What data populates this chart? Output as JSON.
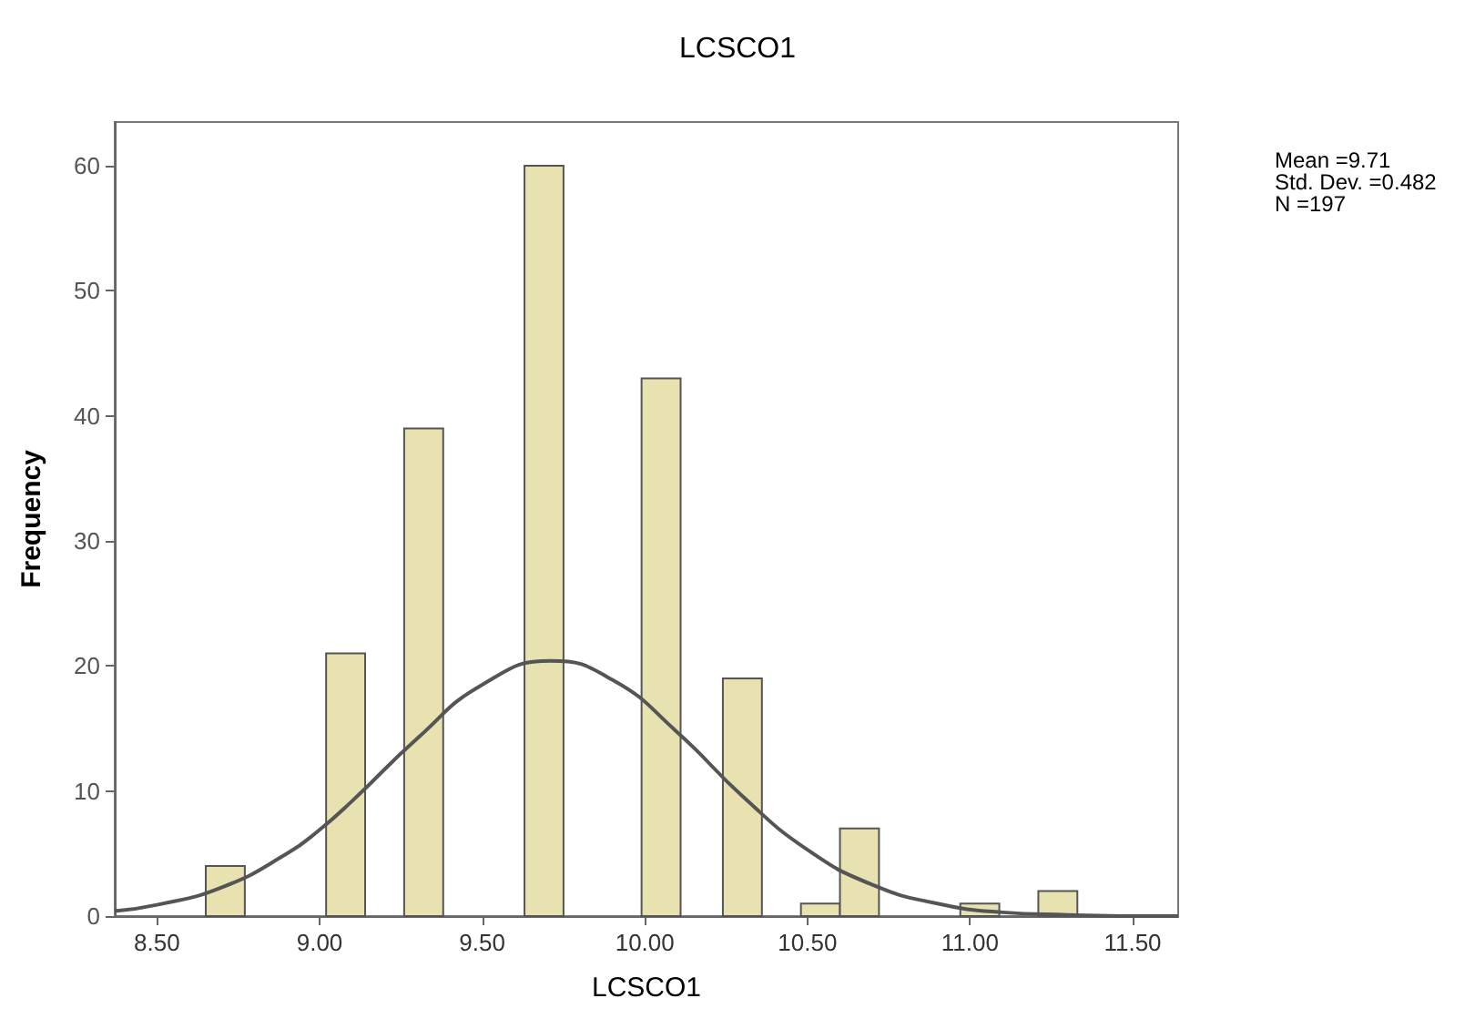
{
  "chart_data": {
    "type": "histogram",
    "title": "LCSCO1",
    "xlabel": "LCSCO1",
    "ylabel": "Frequency",
    "bins": [
      8.65,
      8.77,
      9.02,
      9.14,
      9.26,
      9.38,
      9.63,
      9.75,
      9.99,
      10.11,
      10.24,
      10.36,
      10.48,
      10.6,
      10.72,
      10.97,
      11.09,
      11.21,
      11.33
    ],
    "values": [
      4,
      0,
      21,
      0,
      39,
      0,
      60,
      0,
      43,
      0,
      19,
      0,
      1,
      7,
      0,
      1,
      0,
      2
    ],
    "color": "#e8e2b0",
    "series": [
      {
        "type": "line",
        "color": "#555555",
        "x": [
          8.37,
          8.5,
          8.7,
          8.9,
          9.0,
          9.1,
          9.3,
          9.5,
          9.71,
          9.9,
          10.1,
          10.3,
          10.5,
          10.7,
          10.9,
          11.1,
          11.3,
          11.5,
          11.64
        ],
        "values": [
          0.4,
          0.9,
          2.3,
          5,
          6.9,
          9.2,
          14.2,
          18.5,
          20.4,
          18.9,
          14.7,
          9.6,
          5.3,
          2.5,
          1,
          0.3,
          0.1,
          0,
          0
        ]
      }
    ],
    "xlim": [
      8.37,
      11.64
    ],
    "ylim": [
      0,
      63.5
    ],
    "xticks": [
      {
        "value": 8.5,
        "label": "8.50"
      },
      {
        "value": 9,
        "label": "9.00"
      },
      {
        "value": 9.5,
        "label": "9.50"
      },
      {
        "value": 10,
        "label": "10.00"
      },
      {
        "value": 10.5,
        "label": "10.50"
      },
      {
        "value": 11,
        "label": "11.00"
      },
      {
        "value": 11.5,
        "label": "11.50"
      }
    ],
    "yticks": [
      0,
      10,
      20,
      30,
      40,
      50,
      60
    ],
    "grid": false,
    "annotations": [
      "Mean =9.71",
      "Std. Dev. =0.482",
      "N =197"
    ]
  }
}
